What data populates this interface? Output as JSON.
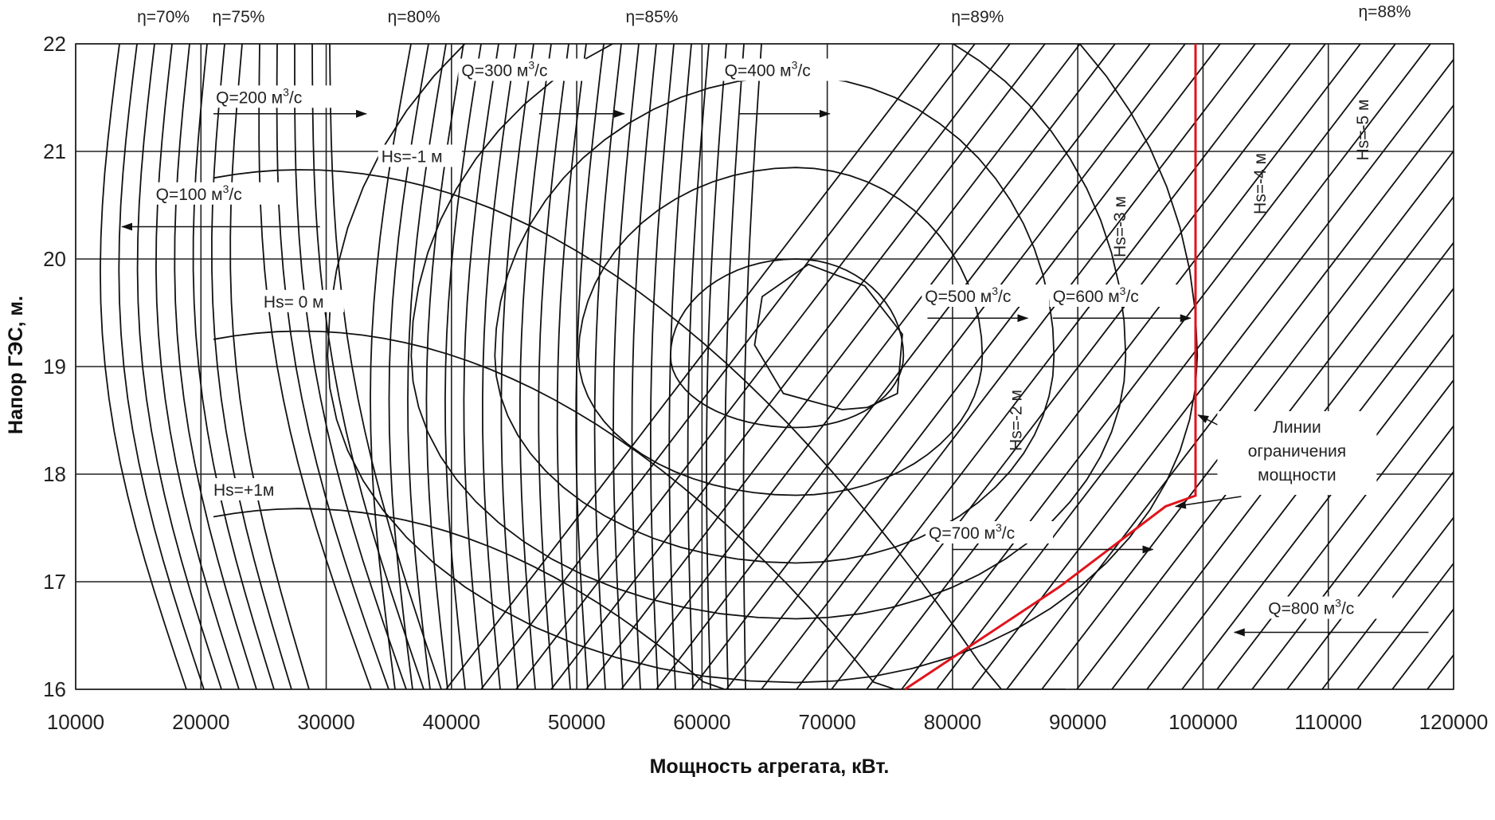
{
  "chart_data": {
    "type": "line",
    "xlabel": "Мощность агрегата, кВт.",
    "ylabel": "Напор ГЭС, м.",
    "xlim": [
      10000,
      120000
    ],
    "ylim": [
      16,
      22
    ],
    "x_ticks": [
      "10000",
      "20000",
      "30000",
      "40000",
      "50000",
      "60000",
      "70000",
      "80000",
      "90000",
      "100000",
      "110000",
      "120000"
    ],
    "y_ticks": [
      "16",
      "17",
      "18",
      "19",
      "20",
      "21",
      "22"
    ],
    "grid": true,
    "power_limit_line": {
      "name": "Линии ограничения мощности",
      "x": [
        76200,
        88500,
        97000,
        99400,
        99400
      ],
      "y": [
        16.0,
        16.95,
        17.7,
        17.8,
        22.0
      ],
      "color": "#e0141c"
    },
    "efficiency_labels": [
      {
        "text": "η=70%",
        "x": 17000,
        "y": 22.2
      },
      {
        "text": "η=75%",
        "x": 23000,
        "y": 22.2
      },
      {
        "text": "η=80%",
        "x": 37000,
        "y": 22.2
      },
      {
        "text": "η=85%",
        "x": 56000,
        "y": 22.2
      },
      {
        "text": "η=89%",
        "x": 82000,
        "y": 22.2
      },
      {
        "text": "η=88%",
        "x": 114500,
        "y": 22.25
      }
    ],
    "efficiency_contours": [
      {
        "name": "η=89%",
        "x": [
          71200,
          66500,
          64200,
          64800,
          68500,
          73000,
          76000,
          75600,
          73200,
          71200
        ],
        "y": [
          18.6,
          18.75,
          19.2,
          19.65,
          19.95,
          19.75,
          19.3,
          18.75,
          18.62,
          18.6
        ]
      }
    ],
    "flow_labels": [
      {
        "text": "Q=100 м³/с",
        "x": 16400,
        "y": 20.55,
        "arrow": [
          [
            29500,
            20.3
          ],
          [
            13700,
            20.3
          ]
        ]
      },
      {
        "text": "Q=200 м³/с",
        "x": 21200,
        "y": 21.45,
        "arrow": [
          [
            21000,
            21.35
          ],
          [
            33200,
            21.35
          ]
        ]
      },
      {
        "text": "Q=300 м³/с",
        "x": 40800,
        "y": 21.7,
        "arrow": [
          [
            47000,
            21.35
          ],
          [
            53800,
            21.35
          ]
        ]
      },
      {
        "text": "Q=400 м³/с",
        "x": 61800,
        "y": 21.7,
        "arrow": [
          [
            63000,
            21.35
          ],
          [
            70200,
            21.35
          ]
        ]
      },
      {
        "text": "Q=500 м³/с",
        "x": 77800,
        "y": 19.6,
        "arrow": [
          [
            78000,
            19.45
          ],
          [
            86000,
            19.45
          ]
        ]
      },
      {
        "text": "Q=600 м³/с",
        "x": 88000,
        "y": 19.6,
        "arrow": [
          [
            88000,
            19.45
          ],
          [
            99000,
            19.45
          ]
        ]
      },
      {
        "text": "Q=700 м³/с",
        "x": 78100,
        "y": 17.4,
        "arrow": [
          [
            80000,
            17.3
          ],
          [
            96000,
            17.3
          ]
        ]
      },
      {
        "text": "Q=800 м³/с",
        "x": 105200,
        "y": 16.7,
        "arrow": [
          [
            118000,
            16.53
          ],
          [
            102500,
            16.53
          ]
        ]
      }
    ],
    "suction_height_labels": [
      {
        "text": "Hs=-1 м",
        "x": 34400,
        "y": 20.9
      },
      {
        "text": "Hs= 0 м",
        "x": 25000,
        "y": 19.55
      },
      {
        "text": "Hs=+1м",
        "x": 21000,
        "y": 17.8
      },
      {
        "text": "Hs=-2 м",
        "x": 85500,
        "y": 18.5,
        "rotated": true
      },
      {
        "text": "Hs=-3 м",
        "x": 93800,
        "y": 20.3,
        "rotated": true
      },
      {
        "text": "Hs=-4 м",
        "x": 105000,
        "y": 20.7,
        "rotated": true
      },
      {
        "text": "Hs=-5 м",
        "x": 113200,
        "y": 21.2,
        "rotated": true
      }
    ],
    "annotation": {
      "lines": [
        "Линии",
        "ограничения",
        "мощности"
      ],
      "x": 107500,
      "y": 18.2
    }
  }
}
